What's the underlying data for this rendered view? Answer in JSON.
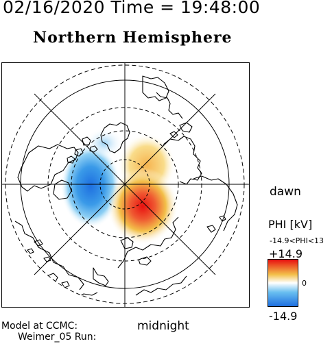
{
  "header": {
    "datetime": "02/16/2020 Time = 19:48:00",
    "hemisphere": "Northern Hemisphere"
  },
  "map": {
    "projection": "polar-stereographic",
    "pole": "north",
    "view": "north pole centered, noon at top, midnight at bottom, dawn at right",
    "layers": [
      "coastlines",
      "latitude-circles",
      "magnetic-local-time-grid",
      "electric-potential-contours"
    ]
  },
  "labels": {
    "dawn": "dawn",
    "midnight": "midnight"
  },
  "colorbar": {
    "title": "PHI [kV]",
    "range_text": "-14.9<PHI<13",
    "max_label": "+14.9",
    "zero_label": "0",
    "min_label": "-14.9",
    "colors": {
      "max": "#e81010",
      "upper": "#f3c04a",
      "mid": "#ffffff",
      "lower": "#69bff0",
      "min": "#1e6fe0"
    }
  },
  "footer": {
    "model": "Model at CCMC:",
    "run": "Weimer_05 Run:"
  }
}
